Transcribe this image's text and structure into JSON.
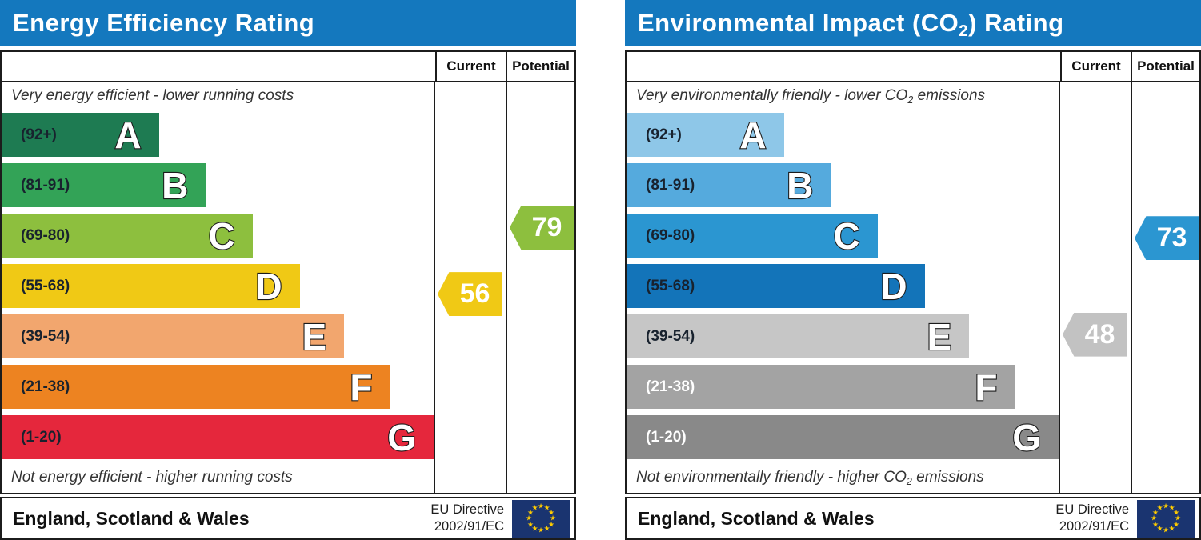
{
  "chart_data": [
    {
      "type": "bar",
      "title": "Energy Efficiency Rating",
      "title_parts": {
        "pre": "Energy Efficiency Rating",
        "sub": "",
        "post": ""
      },
      "columns": [
        "Current",
        "Potential"
      ],
      "top_caption": {
        "pre": "Very energy efficient - lower running costs",
        "sub": "",
        "post": ""
      },
      "bottom_caption": {
        "pre": "Not energy efficient - higher running costs",
        "sub": "",
        "post": ""
      },
      "bands": [
        {
          "letter": "A",
          "range_label": "(92+)",
          "min": 92,
          "max": 100,
          "width_pct": 36.4,
          "color": "#1e7b52",
          "label_color": "#18222e"
        },
        {
          "letter": "B",
          "range_label": "(81-91)",
          "min": 81,
          "max": 91,
          "width_pct": 47.3,
          "color": "#33a357",
          "label_color": "#18222e"
        },
        {
          "letter": "C",
          "range_label": "(69-80)",
          "min": 69,
          "max": 80,
          "width_pct": 58.1,
          "color": "#8dbf3e",
          "label_color": "#18222e"
        },
        {
          "letter": "D",
          "range_label": "(55-68)",
          "min": 55,
          "max": 68,
          "width_pct": 69.0,
          "color": "#f0c915",
          "label_color": "#18222e"
        },
        {
          "letter": "E",
          "range_label": "(39-54)",
          "min": 39,
          "max": 54,
          "width_pct": 79.3,
          "color": "#f2a66e",
          "label_color": "#18222e"
        },
        {
          "letter": "F",
          "range_label": "(21-38)",
          "min": 21,
          "max": 38,
          "width_pct": 89.9,
          "color": "#ed8321",
          "label_color": "#18222e"
        },
        {
          "letter": "G",
          "range_label": "(1-20)",
          "min": 1,
          "max": 20,
          "width_pct": 100,
          "color": "#e5273c",
          "label_color": "#18222e"
        }
      ],
      "markers": {
        "current": {
          "value": 56,
          "color": "#f0c915"
        },
        "potential": {
          "value": 79,
          "color": "#8dbf3e"
        }
      },
      "footer": {
        "region": "England, Scotland & Wales",
        "directive": [
          "EU Directive",
          "2002/91/EC"
        ]
      }
    },
    {
      "type": "bar",
      "title": "Environmental Impact (CO2) Rating",
      "title_parts": {
        "pre": "Environmental Impact (CO",
        "sub": "2",
        "post": ") Rating"
      },
      "columns": [
        "Current",
        "Potential"
      ],
      "top_caption": {
        "pre": "Very environmentally friendly - lower CO",
        "sub": "2",
        "post": " emissions"
      },
      "bottom_caption": {
        "pre": "Not environmentally friendly - higher CO",
        "sub": "2",
        "post": " emissions"
      },
      "bands": [
        {
          "letter": "A",
          "range_label": "(92+)",
          "min": 92,
          "max": 100,
          "width_pct": 36.4,
          "color": "#8ec7e8",
          "label_color": "#18222e"
        },
        {
          "letter": "B",
          "range_label": "(81-91)",
          "min": 81,
          "max": 91,
          "width_pct": 47.3,
          "color": "#55aadd",
          "label_color": "#18222e"
        },
        {
          "letter": "C",
          "range_label": "(69-80)",
          "min": 69,
          "max": 80,
          "width_pct": 58.1,
          "color": "#2b96d1",
          "label_color": "#18222e"
        },
        {
          "letter": "D",
          "range_label": "(55-68)",
          "min": 55,
          "max": 68,
          "width_pct": 69.0,
          "color": "#1374b9",
          "label_color": "#18222e"
        },
        {
          "letter": "E",
          "range_label": "(39-54)",
          "min": 39,
          "max": 54,
          "width_pct": 79.3,
          "color": "#c6c6c6",
          "label_color": "#18222e"
        },
        {
          "letter": "F",
          "range_label": "(21-38)",
          "min": 21,
          "max": 38,
          "width_pct": 89.9,
          "color": "#a3a3a3",
          "label_color": "#ffffff"
        },
        {
          "letter": "G",
          "range_label": "(1-20)",
          "min": 1,
          "max": 20,
          "width_pct": 100,
          "color": "#898989",
          "label_color": "#ffffff"
        }
      ],
      "markers": {
        "current": {
          "value": 48,
          "color": "#c2c2c2"
        },
        "potential": {
          "value": 73,
          "color": "#2b96d1"
        }
      },
      "footer": {
        "region": "England, Scotland & Wales",
        "directive": [
          "EU Directive",
          "2002/91/EC"
        ]
      }
    }
  ]
}
